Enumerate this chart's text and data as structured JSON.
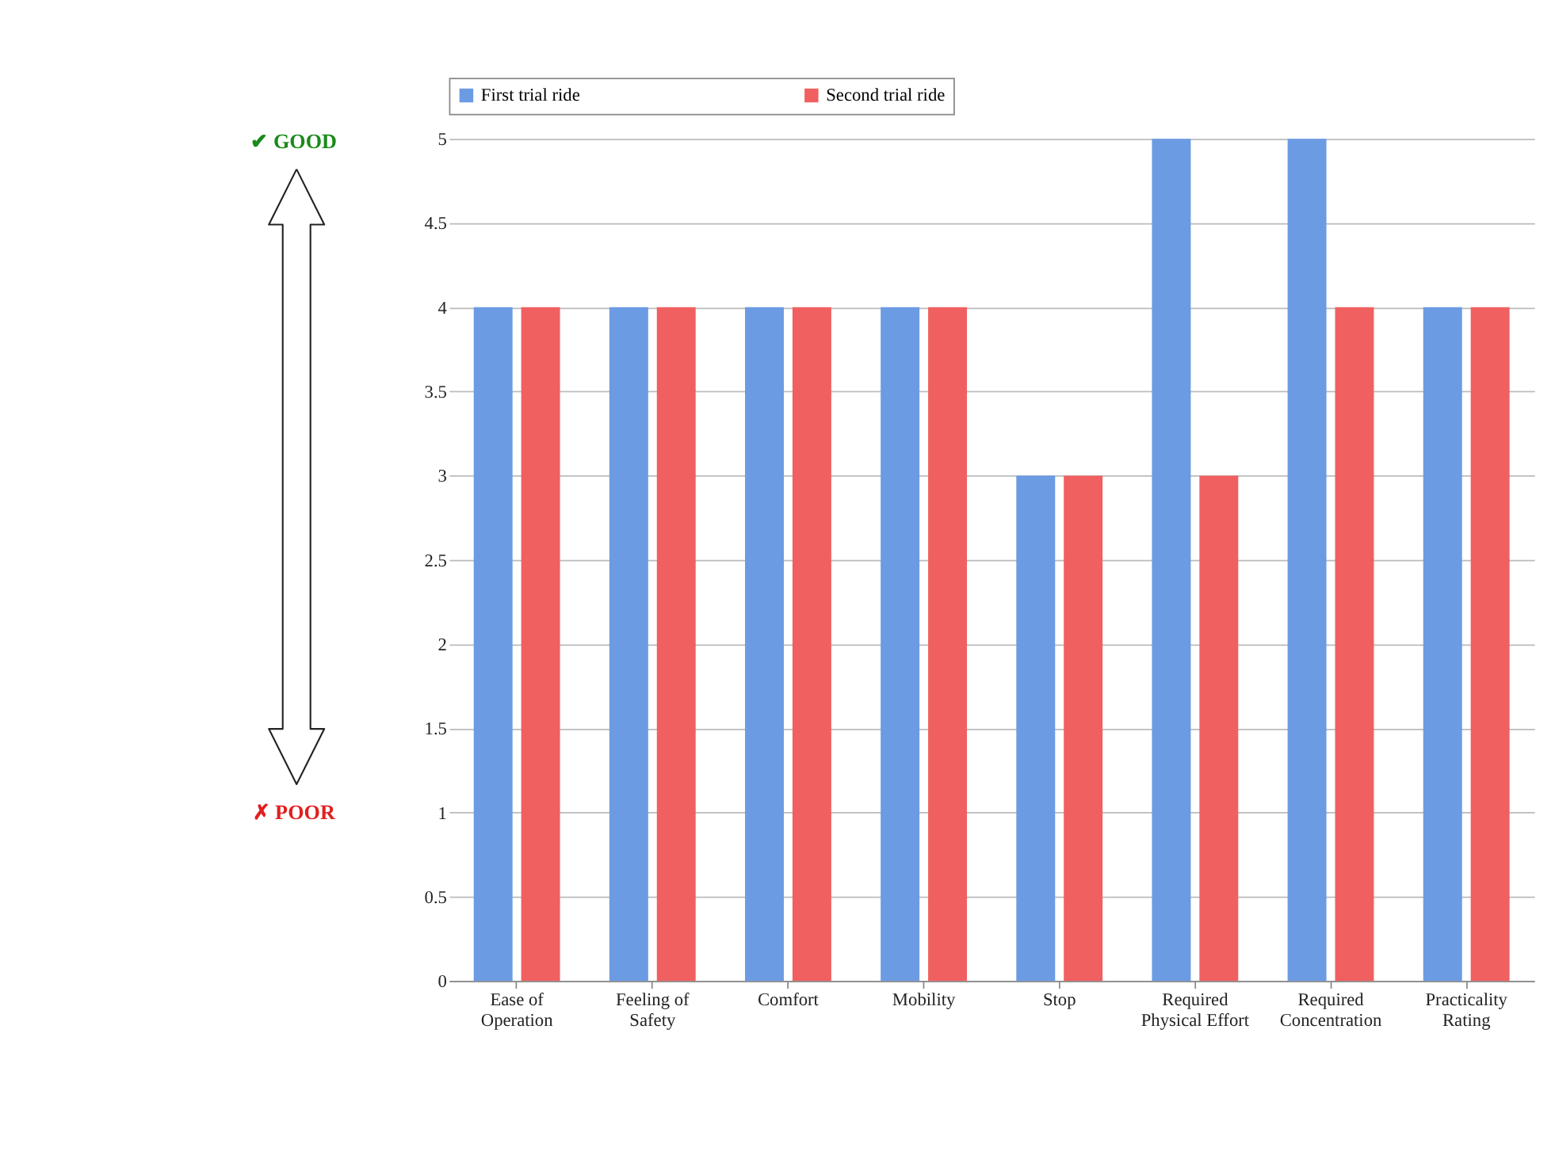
{
  "chart_data": {
    "type": "bar",
    "categories": [
      "Ease of Operation",
      "Feeling of Safety",
      "Comfort",
      "Mobility",
      "Stop",
      "Required Physical Effort",
      "Required Concentration",
      "Practicality Rating"
    ],
    "series": [
      {
        "name": "First trial ride",
        "color": "#6b9be3",
        "values": [
          4,
          4,
          4,
          4,
          3,
          5,
          5,
          4
        ]
      },
      {
        "name": "Second trial ride",
        "color": "#f06060",
        "values": [
          4,
          4,
          4,
          4,
          3,
          3,
          4,
          4
        ]
      }
    ],
    "ylim": [
      0,
      5
    ],
    "yticks": [
      0,
      0.5,
      1,
      1.5,
      2,
      2.5,
      3,
      3.5,
      4,
      4.5,
      5
    ],
    "grid": "y",
    "legend": "top",
    "annotations": [
      "✔ GOOD",
      "✗ POOR"
    ]
  }
}
